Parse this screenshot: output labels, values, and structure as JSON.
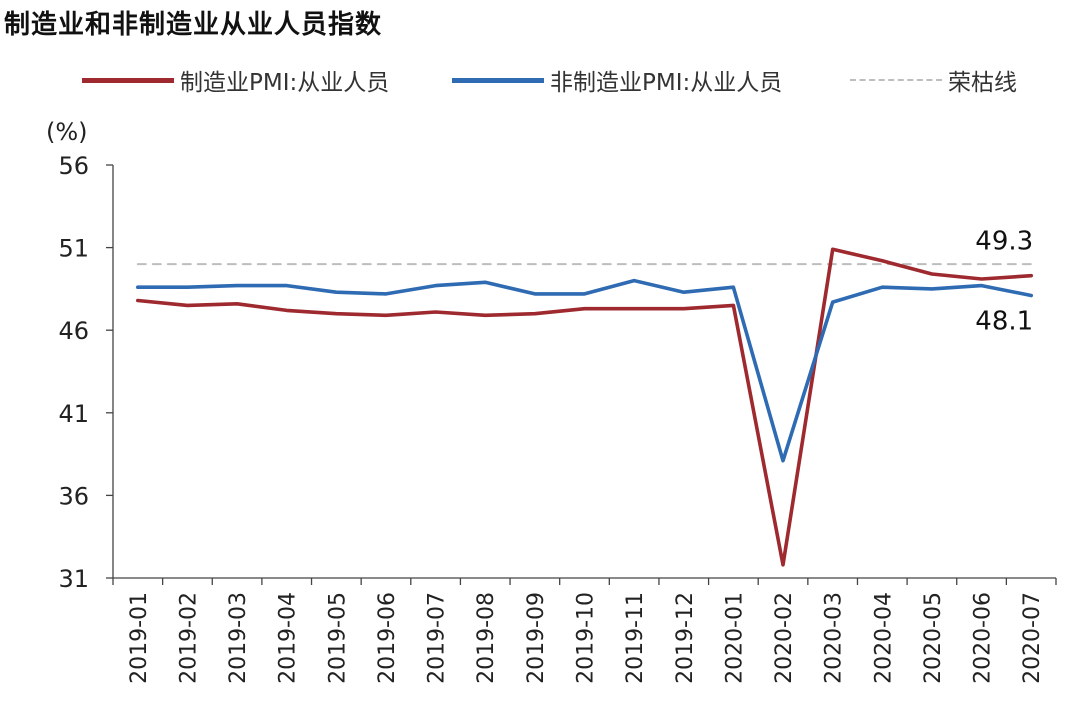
{
  "title": "制造业和非制造业从业人员指数",
  "legend": [
    {
      "label": "制造业PMI:从业人员",
      "color": "#9e2a2f",
      "style": "solid"
    },
    {
      "label": "非制造业PMI:从业人员",
      "color": "#2f6bb3",
      "style": "solid"
    },
    {
      "label": "荣枯线",
      "color": "#bdbdbd",
      "style": "dashed"
    }
  ],
  "chart_data": {
    "type": "line",
    "title": "制造业和非制造业从业人员指数",
    "ylabel": "(%)",
    "ylim": [
      31,
      56
    ],
    "yticks": [
      56,
      51,
      46,
      41,
      36,
      31
    ],
    "x": [
      "2019-01",
      "2019-02",
      "2019-03",
      "2019-04",
      "2019-05",
      "2019-06",
      "2019-07",
      "2019-08",
      "2019-09",
      "2019-10",
      "2019-11",
      "2019-12",
      "2020-01",
      "2020-02",
      "2020-03",
      "2020-04",
      "2020-05",
      "2020-06",
      "2020-07"
    ],
    "series": [
      {
        "name": "制造业PMI:从业人员",
        "color": "#9e2a2f",
        "values": [
          47.8,
          47.5,
          47.6,
          47.2,
          47.0,
          46.9,
          47.1,
          46.9,
          47.0,
          47.3,
          47.3,
          47.3,
          47.5,
          31.8,
          50.9,
          50.2,
          49.4,
          49.1,
          49.3
        ]
      },
      {
        "name": "非制造业PMI:从业人员",
        "color": "#2f6bb3",
        "values": [
          48.6,
          48.6,
          48.7,
          48.7,
          48.3,
          48.2,
          48.7,
          48.9,
          48.2,
          48.2,
          49.0,
          48.3,
          48.6,
          38.1,
          47.7,
          48.6,
          48.5,
          48.7,
          48.1
        ]
      },
      {
        "name": "荣枯线",
        "color": "#bdbdbd",
        "dashed": true,
        "values": [
          50,
          50,
          50,
          50,
          50,
          50,
          50,
          50,
          50,
          50,
          50,
          50,
          50,
          50,
          50,
          50,
          50,
          50,
          50
        ]
      }
    ],
    "annotations": [
      {
        "text": "49.3",
        "series": 0,
        "index": 18
      },
      {
        "text": "48.1",
        "series": 1,
        "index": 18
      }
    ],
    "grid": false,
    "legend_position": "top"
  }
}
